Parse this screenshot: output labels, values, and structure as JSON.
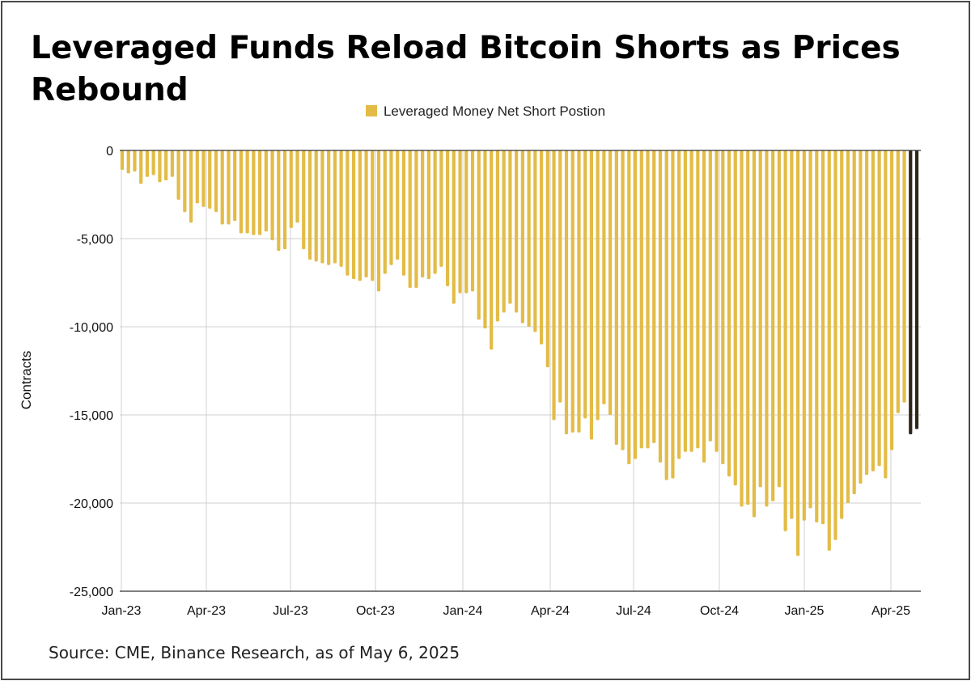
{
  "title": "Leveraged Funds Reload Bitcoin Shorts as Prices Rebound",
  "source": "Source: CME, Binance Research, as of May 6, 2025",
  "colors": {
    "bar": "#e3bc47",
    "highlight": "#2e2619",
    "grid": "#d0d0d0",
    "axis": "#333333"
  },
  "chart_data": {
    "type": "bar",
    "ylabel": "Contracts",
    "ylim": [
      -25000,
      0
    ],
    "y_ticks": [
      0,
      -5000,
      -10000,
      -15000,
      -20000,
      -25000
    ],
    "y_tick_labels": [
      "0",
      "-5,000",
      "-10,000",
      "-15,000",
      "-20,000",
      "-25,000"
    ],
    "x_ticks": [
      "Jan-23",
      "Apr-23",
      "Jul-23",
      "Oct-23",
      "Jan-24",
      "Apr-24",
      "Jul-24",
      "Oct-24",
      "Jan-25",
      "Apr-25"
    ],
    "grid": "vertical and horizontal",
    "legend_position": "top-center",
    "series": [
      {
        "name": "Leveraged Money Net Short Postion",
        "values": [
          -1100,
          -1300,
          -1200,
          -1900,
          -1500,
          -1400,
          -1800,
          -1700,
          -1500,
          -2800,
          -3500,
          -4100,
          -3000,
          -3200,
          -3300,
          -3500,
          -4200,
          -4200,
          -4000,
          -4700,
          -4700,
          -4800,
          -4800,
          -4600,
          -5100,
          -5700,
          -5600,
          -4400,
          -4100,
          -5600,
          -6200,
          -6300,
          -6400,
          -6500,
          -6400,
          -6600,
          -7100,
          -7300,
          -7400,
          -7200,
          -7400,
          -8000,
          -7000,
          -6500,
          -6200,
          -7100,
          -7800,
          -7800,
          -7200,
          -7300,
          -7000,
          -6600,
          -7700,
          -8700,
          -8100,
          -8100,
          -8000,
          -9600,
          -10100,
          -11300,
          -9700,
          -9200,
          -8700,
          -9200,
          -9800,
          -10000,
          -10300,
          -11000,
          -12300,
          -15300,
          -14300,
          -16100,
          -16000,
          -16000,
          -15200,
          -16400,
          -15300,
          -14400,
          -15000,
          -16700,
          -17000,
          -17800,
          -17500,
          -16900,
          -16900,
          -16600,
          -17700,
          -18700,
          -18600,
          -17500,
          -17100,
          -17100,
          -16900,
          -17700,
          -16500,
          -17100,
          -17800,
          -18500,
          -19000,
          -20200,
          -20100,
          -20800,
          -19100,
          -20200,
          -19900,
          -19100,
          -21600,
          -20900,
          -23000,
          -21000,
          -20300,
          -21100,
          -21200,
          -22700,
          -22100,
          -20900,
          -20000,
          -19500,
          -18900,
          -18400,
          -18200,
          -17900,
          -18600,
          -17000,
          -14900,
          -14300,
          -16100,
          -15800
        ]
      }
    ],
    "highlighted_last_bars": 2
  }
}
